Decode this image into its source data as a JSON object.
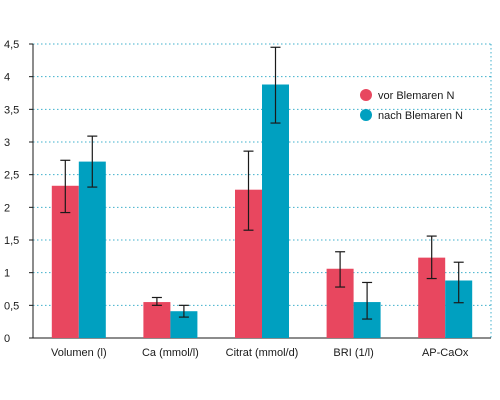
{
  "chart_data": {
    "type": "bar",
    "title": "",
    "xlabel": "",
    "ylabel": "",
    "ylim": [
      0,
      4.5
    ],
    "yticks": [
      "0",
      "0,5",
      "1",
      "1,5",
      "2",
      "2,5",
      "3",
      "3,5",
      "4",
      "4,5"
    ],
    "grid": true,
    "legend_position": "right",
    "categories": [
      "Volumen (l)",
      "Ca (mmol/l)",
      "Citrat (mmol/d)",
      "BRI (1/l)",
      "AP-CaOx"
    ],
    "series": [
      {
        "name": "vor Blemaren N",
        "color": "#e8475f",
        "values": [
          2.33,
          0.55,
          2.27,
          1.06,
          1.23
        ],
        "error_low": [
          1.92,
          0.5,
          1.65,
          0.78,
          0.91
        ],
        "error_high": [
          2.72,
          0.62,
          2.86,
          1.32,
          1.56
        ]
      },
      {
        "name": "nach Blemaren N",
        "color": "#00a0c0",
        "values": [
          2.7,
          0.41,
          3.88,
          0.55,
          0.88
        ],
        "error_low": [
          2.31,
          0.32,
          3.29,
          0.29,
          0.54
        ],
        "error_high": [
          3.09,
          0.5,
          4.45,
          0.85,
          1.16
        ]
      }
    ]
  }
}
